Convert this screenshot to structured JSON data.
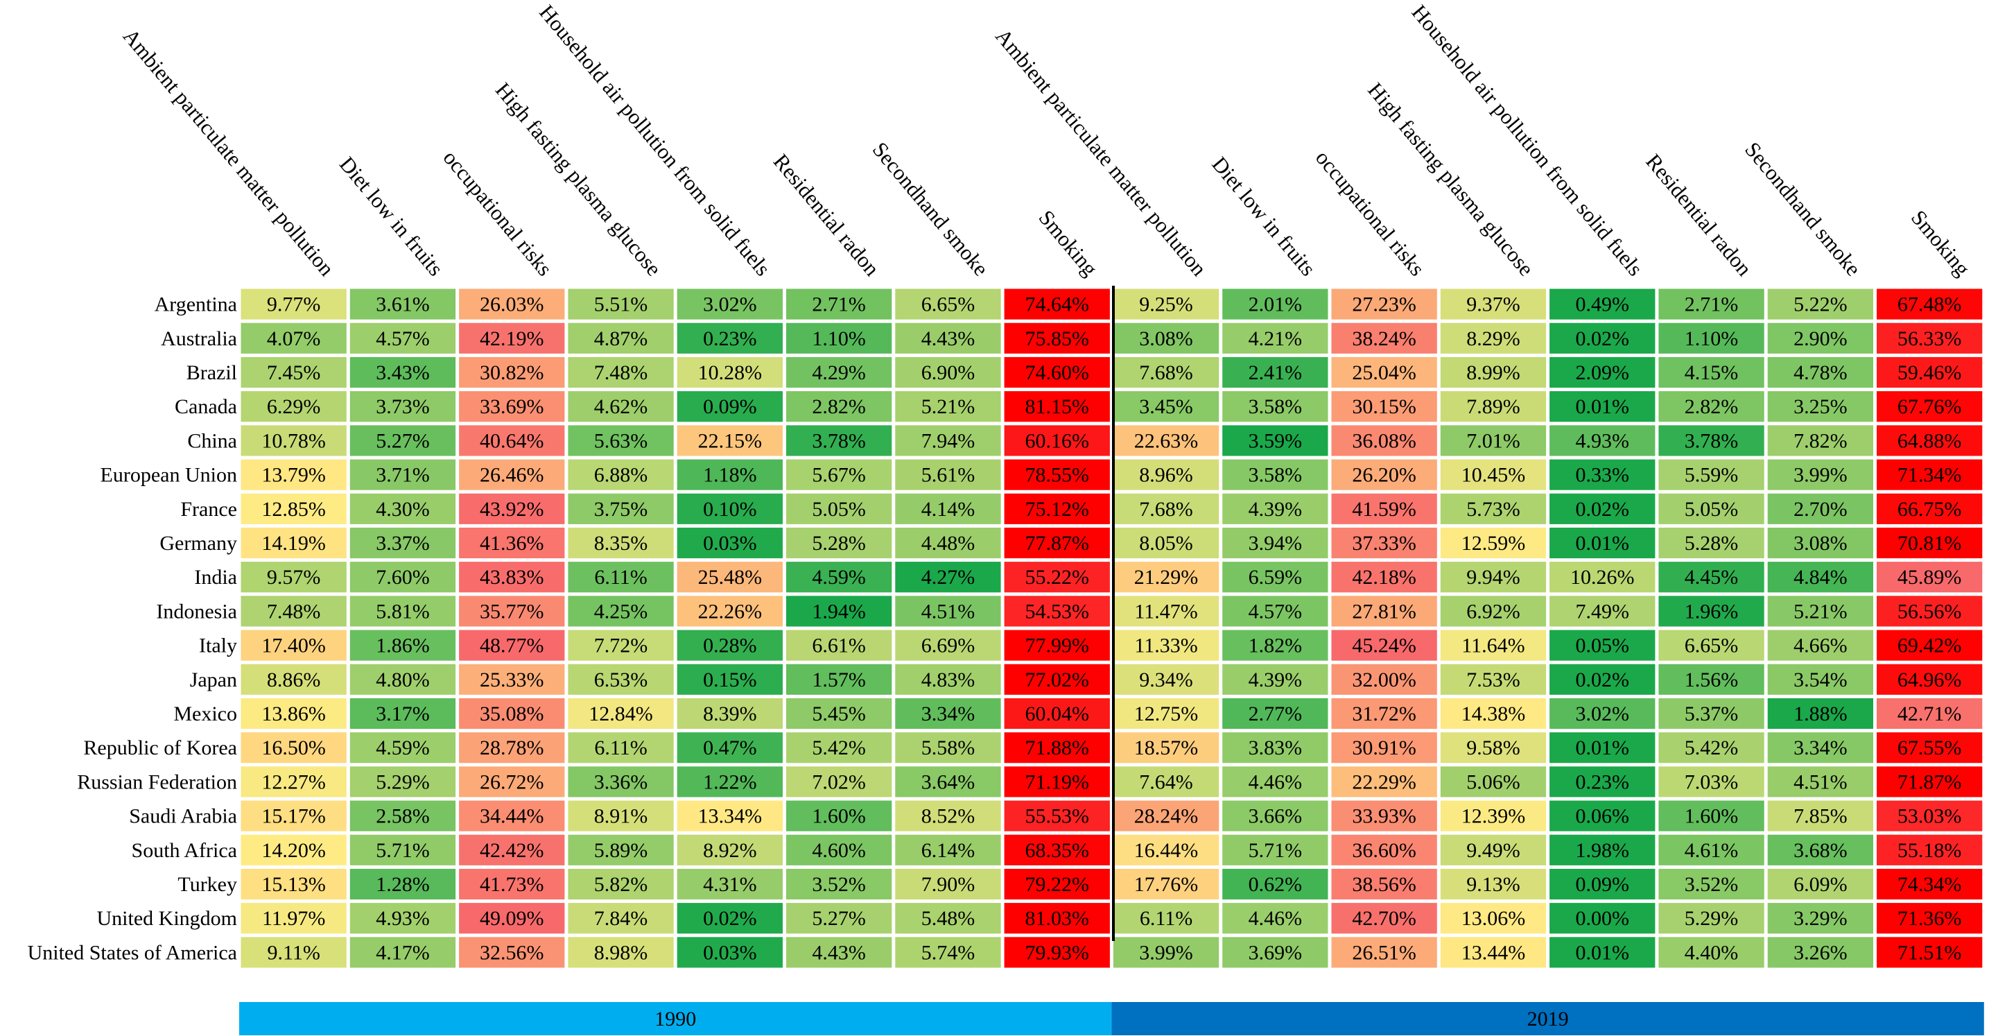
{
  "chart_data": {
    "type": "heatmap",
    "columns": [
      "Ambient particulate matter pollution",
      "Diet low in fruits",
      "occupational risks",
      "High fasting plasma glucose",
      "Household air pollution from solid fuels",
      "Residential radon",
      "Secondhand smoke",
      "Smoking"
    ],
    "years": [
      "1990",
      "2019"
    ],
    "rows": [
      "Argentina",
      "Australia",
      "Brazil",
      "Canada",
      "China",
      "European Union",
      "France",
      "Germany",
      "India",
      "Indonesia",
      "Italy",
      "Japan",
      "Mexico",
      "Republic of Korea",
      "Russian Federation",
      "Saudi Arabia",
      "South Africa",
      "Turkey",
      "United Kingdom",
      "United States of America"
    ],
    "values": [
      [
        "9.77%",
        "3.61%",
        "26.03%",
        "5.51%",
        "3.02%",
        "2.71%",
        "6.65%",
        "74.64%",
        "9.25%",
        "2.01%",
        "27.23%",
        "9.37%",
        "0.49%",
        "2.71%",
        "5.22%",
        "67.48%"
      ],
      [
        "4.07%",
        "4.57%",
        "42.19%",
        "4.87%",
        "0.23%",
        "1.10%",
        "4.43%",
        "75.85%",
        "3.08%",
        "4.21%",
        "38.24%",
        "8.29%",
        "0.02%",
        "1.10%",
        "2.90%",
        "56.33%"
      ],
      [
        "7.45%",
        "3.43%",
        "30.82%",
        "7.48%",
        "10.28%",
        "4.29%",
        "6.90%",
        "74.60%",
        "7.68%",
        "2.41%",
        "25.04%",
        "8.99%",
        "2.09%",
        "4.15%",
        "4.78%",
        "59.46%"
      ],
      [
        "6.29%",
        "3.73%",
        "33.69%",
        "4.62%",
        "0.09%",
        "2.82%",
        "5.21%",
        "81.15%",
        "3.45%",
        "3.58%",
        "30.15%",
        "7.89%",
        "0.01%",
        "2.82%",
        "3.25%",
        "67.76%"
      ],
      [
        "10.78%",
        "5.27%",
        "40.64%",
        "5.63%",
        "22.15%",
        "3.78%",
        "7.94%",
        "60.16%",
        "22.63%",
        "3.59%",
        "36.08%",
        "7.01%",
        "4.93%",
        "3.78%",
        "7.82%",
        "64.88%"
      ],
      [
        "13.79%",
        "3.71%",
        "26.46%",
        "6.88%",
        "1.18%",
        "5.67%",
        "5.61%",
        "78.55%",
        "8.96%",
        "3.58%",
        "26.20%",
        "10.45%",
        "0.33%",
        "5.59%",
        "3.99%",
        "71.34%"
      ],
      [
        "12.85%",
        "4.30%",
        "43.92%",
        "3.75%",
        "0.10%",
        "5.05%",
        "4.14%",
        "75.12%",
        "7.68%",
        "4.39%",
        "41.59%",
        "5.73%",
        "0.02%",
        "5.05%",
        "2.70%",
        "66.75%"
      ],
      [
        "14.19%",
        "3.37%",
        "41.36%",
        "8.35%",
        "0.03%",
        "5.28%",
        "4.48%",
        "77.87%",
        "8.05%",
        "3.94%",
        "37.33%",
        "12.59%",
        "0.01%",
        "5.28%",
        "3.08%",
        "70.81%"
      ],
      [
        "9.57%",
        "7.60%",
        "43.83%",
        "6.11%",
        "25.48%",
        "4.59%",
        "4.27%",
        "55.22%",
        "21.29%",
        "6.59%",
        "42.18%",
        "9.94%",
        "10.26%",
        "4.45%",
        "4.84%",
        "45.89%"
      ],
      [
        "7.48%",
        "5.81%",
        "35.77%",
        "4.25%",
        "22.26%",
        "1.94%",
        "4.51%",
        "54.53%",
        "11.47%",
        "4.57%",
        "27.81%",
        "6.92%",
        "7.49%",
        "1.96%",
        "5.21%",
        "56.56%"
      ],
      [
        "17.40%",
        "1.86%",
        "48.77%",
        "7.72%",
        "0.28%",
        "6.61%",
        "6.69%",
        "77.99%",
        "11.33%",
        "1.82%",
        "45.24%",
        "11.64%",
        "0.05%",
        "6.65%",
        "4.66%",
        "69.42%"
      ],
      [
        "8.86%",
        "4.80%",
        "25.33%",
        "6.53%",
        "0.15%",
        "1.57%",
        "4.83%",
        "77.02%",
        "9.34%",
        "4.39%",
        "32.00%",
        "7.53%",
        "0.02%",
        "1.56%",
        "3.54%",
        "64.96%"
      ],
      [
        "13.86%",
        "3.17%",
        "35.08%",
        "12.84%",
        "8.39%",
        "5.45%",
        "3.34%",
        "60.04%",
        "12.75%",
        "2.77%",
        "31.72%",
        "14.38%",
        "3.02%",
        "5.37%",
        "1.88%",
        "42.71%"
      ],
      [
        "16.50%",
        "4.59%",
        "28.78%",
        "6.11%",
        "0.47%",
        "5.42%",
        "5.58%",
        "71.88%",
        "18.57%",
        "3.83%",
        "30.91%",
        "9.58%",
        "0.01%",
        "5.42%",
        "3.34%",
        "67.55%"
      ],
      [
        "12.27%",
        "5.29%",
        "26.72%",
        "3.36%",
        "1.22%",
        "7.02%",
        "3.64%",
        "71.19%",
        "7.64%",
        "4.46%",
        "22.29%",
        "5.06%",
        "0.23%",
        "7.03%",
        "4.51%",
        "71.87%"
      ],
      [
        "15.17%",
        "2.58%",
        "34.44%",
        "8.91%",
        "13.34%",
        "1.60%",
        "8.52%",
        "55.53%",
        "28.24%",
        "3.66%",
        "33.93%",
        "12.39%",
        "0.06%",
        "1.60%",
        "7.85%",
        "53.03%"
      ],
      [
        "14.20%",
        "5.71%",
        "42.42%",
        "5.89%",
        "8.92%",
        "4.60%",
        "6.14%",
        "68.35%",
        "16.44%",
        "5.71%",
        "36.60%",
        "9.49%",
        "1.98%",
        "4.61%",
        "3.68%",
        "55.18%"
      ],
      [
        "15.13%",
        "1.28%",
        "41.73%",
        "5.82%",
        "4.31%",
        "3.52%",
        "7.90%",
        "79.22%",
        "17.76%",
        "0.62%",
        "38.56%",
        "9.13%",
        "0.09%",
        "3.52%",
        "6.09%",
        "74.34%"
      ],
      [
        "11.97%",
        "4.93%",
        "49.09%",
        "7.84%",
        "0.02%",
        "5.27%",
        "5.48%",
        "81.03%",
        "6.11%",
        "4.46%",
        "42.70%",
        "13.06%",
        "0.00%",
        "5.29%",
        "3.29%",
        "71.36%"
      ],
      [
        "9.11%",
        "4.17%",
        "32.56%",
        "8.98%",
        "0.03%",
        "4.43%",
        "5.74%",
        "79.93%",
        "3.99%",
        "3.69%",
        "26.51%",
        "13.44%",
        "0.01%",
        "4.40%",
        "3.26%",
        "71.51%"
      ]
    ],
    "color_scale": {
      "low": "#1aa84a",
      "mid": "#ffeb84",
      "high": "#f8696b",
      "max": "#ff0000"
    },
    "year_bar_colors": {
      "1990": "#00aeef",
      "2019": "#0070c0"
    }
  }
}
